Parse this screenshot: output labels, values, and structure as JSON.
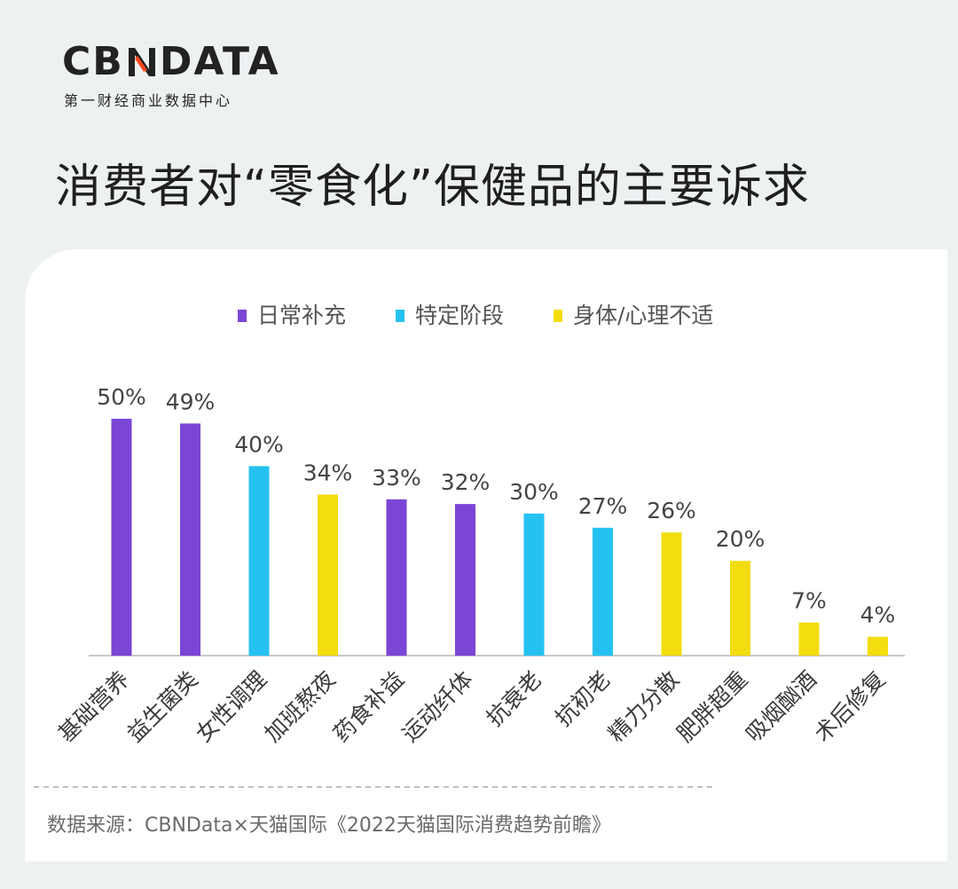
{
  "header": {
    "logo_text_left": "CB",
    "logo_text_right": "DATA",
    "logo_subtitle": "第一财经商业数据中心",
    "title": "消费者对“零食化”保健品的主要诉求"
  },
  "colors": {
    "日常补充": "#7b45d6",
    "特定阶段": "#25c2f1",
    "身体/心理不适": "#f2dd0f",
    "axis": "#c8c8c8",
    "logo_accent": "#ff4a1c"
  },
  "chart_data": {
    "type": "bar",
    "title": "",
    "xlabel": "",
    "ylabel": "",
    "ylim": [
      0,
      100
    ],
    "grid": false,
    "legend_position": "top",
    "legend": [
      "日常补充",
      "特定阶段",
      "身体/心理不适"
    ],
    "categories": [
      "基础营养",
      "益生菌类",
      "女性调理",
      "加班熬夜",
      "药食补益",
      "运动纤体",
      "抗衰老",
      "抗初老",
      "精力分散",
      "肥胖超重",
      "吸烟酗酒",
      "术后修复"
    ],
    "values": [
      50,
      49,
      40,
      34,
      33,
      32,
      30,
      27,
      26,
      20,
      7,
      4
    ],
    "value_labels": [
      "50%",
      "49%",
      "40%",
      "34%",
      "33%",
      "32%",
      "30%",
      "27%",
      "26%",
      "20%",
      "7%",
      "4%"
    ],
    "groups": [
      "日常补充",
      "日常补充",
      "特定阶段",
      "身体/心理不适",
      "日常补充",
      "日常补充",
      "特定阶段",
      "特定阶段",
      "身体/心理不适",
      "身体/心理不适",
      "身体/心理不适",
      "身体/心理不适"
    ]
  },
  "footer": {
    "source": "数据来源：CBNData×天猫国际《2022天猫国际消费趋势前瞻》"
  }
}
